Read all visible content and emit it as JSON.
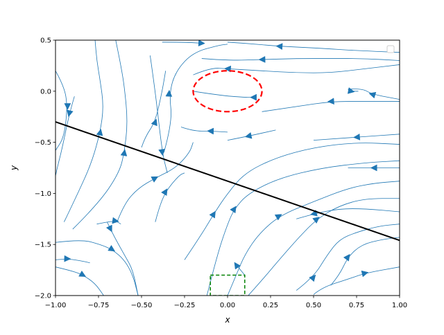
{
  "chart_data": {
    "type": "streamplot",
    "title": "",
    "xlabel": "x",
    "ylabel": "y",
    "xlim": [
      -1.0,
      1.0
    ],
    "ylim": [
      -2.0,
      0.5
    ],
    "x_ticks": [
      -1.0,
      -0.75,
      -0.5,
      -0.25,
      0.0,
      0.25,
      0.5,
      0.75,
      1.0
    ],
    "y_ticks": [
      -2.0,
      -1.5,
      -1.0,
      -0.5,
      0.0,
      0.5
    ],
    "x_tick_labels": [
      "−1.00",
      "−0.75",
      "−0.50",
      "−0.25",
      "0.00",
      "0.25",
      "0.50",
      "0.75",
      "1.00"
    ],
    "y_tick_labels": [
      "−2.0",
      "−1.5",
      "−1.0",
      "−0.5",
      "0.0",
      "0.5"
    ],
    "grid": false,
    "legend": {
      "placement": "upper-right",
      "entries": []
    },
    "colors": {
      "stream": "#1f77b4",
      "line": "#000000",
      "ellipse": "#ff0000",
      "box": "#008000"
    },
    "streamlines": [
      {
        "points": [
          [
            -1.0,
            0.2
          ],
          [
            -0.95,
            0.05
          ],
          [
            -0.93,
            -0.15
          ],
          [
            -0.95,
            -0.45
          ],
          [
            -1.0,
            -0.58
          ]
        ],
        "arrow_at": 2,
        "arrow_dir": "down"
      },
      {
        "points": [
          [
            -0.89,
            -0.05
          ],
          [
            -0.92,
            -0.22
          ],
          [
            -0.96,
            -0.55
          ],
          [
            -0.99,
            -0.75
          ],
          [
            -1.0,
            -0.83
          ]
        ],
        "arrow_at": 1,
        "arrow_dir": "down"
      },
      {
        "points": [
          [
            -0.95,
            -1.28
          ],
          [
            -0.87,
            -1.0
          ],
          [
            -0.79,
            -0.7
          ],
          [
            -0.74,
            -0.4
          ],
          [
            -0.72,
            -0.15
          ],
          [
            -0.74,
            0.1
          ],
          [
            -0.76,
            0.3
          ],
          [
            -0.77,
            0.5
          ]
        ],
        "arrow_at": 3,
        "arrow_dir": "up"
      },
      {
        "points": [
          [
            -0.9,
            -1.35
          ],
          [
            -0.75,
            -1.1
          ],
          [
            -0.63,
            -0.8
          ],
          [
            -0.6,
            -0.6
          ],
          [
            -0.58,
            -0.3
          ],
          [
            -0.6,
            0.05
          ],
          [
            -0.62,
            0.25
          ],
          [
            -0.65,
            0.5
          ]
        ],
        "arrow_at": 3,
        "arrow_dir": "up"
      },
      {
        "points": [
          [
            -0.42,
            -1.28
          ],
          [
            -0.4,
            -1.15
          ],
          [
            -0.36,
            -0.98
          ],
          [
            -0.28,
            -0.82
          ],
          [
            -0.25,
            -0.8
          ]
        ],
        "arrow_at": 2,
        "arrow_dir": "up"
      },
      {
        "points": [
          [
            -0.45,
            0.35
          ],
          [
            -0.42,
            0.0
          ],
          [
            -0.38,
            -0.6
          ],
          [
            -0.35,
            -0.8
          ]
        ],
        "arrow_at": 2,
        "arrow_dir": "down"
      },
      {
        "points": [
          [
            -0.37,
            -0.6
          ],
          [
            -0.32,
            -0.3
          ],
          [
            -0.34,
            -0.02
          ],
          [
            -0.3,
            0.2
          ],
          [
            -0.2,
            0.38
          ],
          [
            -0.05,
            0.45
          ],
          [
            0.0,
            0.46
          ]
        ],
        "arrow_at": 2,
        "arrow_dir": "up"
      },
      {
        "points": [
          [
            -0.7,
            -1.28
          ],
          [
            -0.68,
            -1.35
          ],
          [
            -0.65,
            -1.45
          ],
          [
            -0.6,
            -1.6
          ],
          [
            -0.55,
            -1.75
          ],
          [
            -0.52,
            -2.0
          ]
        ],
        "arrow_at": 1,
        "arrow_dir": "down"
      },
      {
        "points": [
          [
            -0.76,
            -1.3
          ],
          [
            -0.7,
            -1.28
          ],
          [
            -0.65,
            -1.27
          ],
          [
            -0.62,
            -1.3
          ]
        ],
        "arrow_at": 2,
        "arrow_dir": "right"
      },
      {
        "points": [
          [
            -1.0,
            -1.48
          ],
          [
            -0.85,
            -1.45
          ],
          [
            -0.74,
            -1.5
          ],
          [
            -0.67,
            -1.55
          ],
          [
            -0.6,
            -1.65
          ],
          [
            -0.55,
            -1.8
          ],
          [
            -0.52,
            -2.0
          ]
        ],
        "arrow_at": 3,
        "arrow_dir": "down"
      },
      {
        "points": [
          [
            -1.0,
            -1.65
          ],
          [
            -0.93,
            -1.64
          ],
          [
            -0.85,
            -1.66
          ],
          [
            -0.8,
            -1.68
          ]
        ],
        "arrow_at": 1,
        "arrow_dir": "right"
      },
      {
        "points": [
          [
            -1.0,
            -1.72
          ],
          [
            -0.9,
            -1.76
          ],
          [
            -0.84,
            -1.8
          ],
          [
            -0.77,
            -1.88
          ],
          [
            -0.72,
            -2.0
          ]
        ],
        "arrow_at": 2,
        "arrow_dir": "right"
      },
      {
        "points": [
          [
            -0.25,
            -1.65
          ],
          [
            -0.15,
            -1.4
          ],
          [
            -0.08,
            -1.2
          ],
          [
            0.0,
            -1.0
          ],
          [
            0.1,
            -0.8
          ],
          [
            0.28,
            -0.65
          ],
          [
            0.5,
            -0.55
          ],
          [
            0.75,
            -0.5
          ],
          [
            1.0,
            -0.52
          ]
        ],
        "arrow_at": 2,
        "arrow_dir": "up"
      },
      {
        "points": [
          [
            -0.12,
            -2.0
          ],
          [
            -0.06,
            -1.6
          ],
          [
            0.0,
            -1.3
          ],
          [
            0.04,
            -1.15
          ],
          [
            0.12,
            -1.0
          ],
          [
            0.3,
            -0.85
          ],
          [
            0.55,
            -0.75
          ],
          [
            0.8,
            -0.7
          ],
          [
            1.0,
            -0.68
          ]
        ],
        "arrow_at": 3,
        "arrow_dir": "up"
      },
      {
        "points": [
          [
            0.0,
            -2.0
          ],
          [
            0.05,
            -1.8
          ],
          [
            0.1,
            -1.6
          ],
          [
            0.18,
            -1.4
          ],
          [
            0.3,
            -1.22
          ],
          [
            0.5,
            -1.08
          ],
          [
            0.7,
            -0.95
          ],
          [
            0.85,
            -0.9
          ],
          [
            1.0,
            -0.88
          ]
        ],
        "arrow_at": 4,
        "arrow_dir": "up"
      },
      {
        "points": [
          [
            0.12,
            -2.0
          ],
          [
            0.2,
            -1.85
          ],
          [
            0.3,
            -1.65
          ],
          [
            0.42,
            -1.42
          ],
          [
            0.52,
            -1.25
          ],
          [
            0.65,
            -1.12
          ],
          [
            0.8,
            -1.05
          ],
          [
            1.0,
            -1.05
          ]
        ],
        "arrow_at": 4,
        "arrow_dir": "up"
      },
      {
        "points": [
          [
            0.1,
            -1.8
          ],
          [
            0.05,
            -1.7
          ],
          [
            0.06,
            -1.7
          ]
        ],
        "arrow_at": 1,
        "arrow_dir": "up"
      },
      {
        "points": [
          [
            0.4,
            -1.95
          ],
          [
            0.5,
            -1.82
          ],
          [
            0.58,
            -1.6
          ],
          [
            0.65,
            -1.45
          ],
          [
            0.75,
            -1.38
          ],
          [
            0.88,
            -1.32
          ],
          [
            1.0,
            -1.3
          ]
        ],
        "arrow_at": 1,
        "arrow_dir": "up"
      },
      {
        "points": [
          [
            0.6,
            -1.9
          ],
          [
            0.65,
            -1.8
          ],
          [
            0.7,
            -1.62
          ],
          [
            0.78,
            -1.5
          ],
          [
            0.9,
            -1.45
          ],
          [
            1.0,
            -1.43
          ]
        ],
        "arrow_at": 2,
        "arrow_dir": "up"
      },
      {
        "points": [
          [
            0.5,
            -1.99
          ],
          [
            0.55,
            -1.92
          ],
          [
            0.7,
            -1.84
          ],
          [
            0.8,
            -1.78
          ],
          [
            1.0,
            -1.72
          ]
        ],
        "arrow_at": 3,
        "arrow_dir": "up"
      },
      {
        "points": [
          [
            0.4,
            -1.25
          ],
          [
            0.5,
            -1.2
          ],
          [
            0.65,
            -1.15
          ],
          [
            0.8,
            -1.15
          ],
          [
            1.0,
            -1.18
          ]
        ],
        "arrow_at": 1,
        "arrow_dir": "left"
      },
      {
        "points": [
          [
            0.7,
            -0.75
          ],
          [
            0.85,
            -0.75
          ],
          [
            1.0,
            -0.75
          ]
        ],
        "arrow_at": 1,
        "arrow_dir": "left"
      },
      {
        "points": [
          [
            0.5,
            -0.48
          ],
          [
            0.75,
            -0.45
          ],
          [
            1.0,
            -0.42
          ]
        ],
        "arrow_at": 1,
        "arrow_dir": "left"
      },
      {
        "points": [
          [
            -0.27,
            -0.35
          ],
          [
            -0.2,
            -0.39
          ],
          [
            -0.1,
            -0.39
          ],
          [
            0.0,
            -0.4
          ]
        ],
        "arrow_at": 2,
        "arrow_dir": "left"
      },
      {
        "points": [
          [
            0.0,
            -0.48
          ],
          [
            0.12,
            -0.44
          ],
          [
            0.28,
            -0.38
          ]
        ],
        "arrow_at": 1,
        "arrow_dir": "left"
      },
      {
        "points": [
          [
            0.2,
            -0.2
          ],
          [
            0.4,
            -0.15
          ],
          [
            0.6,
            -0.1
          ],
          [
            0.8,
            -0.1
          ],
          [
            1.0,
            -0.1
          ]
        ],
        "arrow_at": 2,
        "arrow_dir": "left"
      },
      {
        "points": [
          [
            0.7,
            0.02
          ],
          [
            0.78,
            0.03
          ],
          [
            0.84,
            -0.03
          ],
          [
            1.0,
            -0.08
          ]
        ],
        "arrow_at": 2,
        "arrow_dir": "left"
      },
      {
        "points": [
          [
            0.7,
            0.02
          ],
          [
            0.72,
            0.0
          ],
          [
            0.76,
            0.0
          ]
        ],
        "arrow_at": 1,
        "arrow_dir": "right"
      },
      {
        "points": [
          [
            -0.2,
            0.0
          ],
          [
            -0.05,
            -0.04
          ],
          [
            0.1,
            -0.06
          ],
          [
            0.15,
            -0.06
          ]
        ],
        "arrow_at": 3,
        "arrow_dir": "left"
      },
      {
        "points": [
          [
            -0.2,
            0.16
          ],
          [
            -0.1,
            0.23
          ],
          [
            0.0,
            0.22
          ],
          [
            0.2,
            0.2
          ],
          [
            0.4,
            0.18
          ],
          [
            0.6,
            0.18
          ],
          [
            0.8,
            0.22
          ],
          [
            1.0,
            0.26
          ]
        ],
        "arrow_at": 2,
        "arrow_dir": "left"
      },
      {
        "points": [
          [
            -0.15,
            0.32
          ],
          [
            0.0,
            0.3
          ],
          [
            0.2,
            0.31
          ],
          [
            0.4,
            0.32
          ],
          [
            0.6,
            0.32
          ],
          [
            0.8,
            0.32
          ],
          [
            1.0,
            0.3
          ]
        ],
        "arrow_at": 2,
        "arrow_dir": "left"
      },
      {
        "points": [
          [
            0.0,
            0.48
          ],
          [
            0.1,
            0.47
          ],
          [
            0.3,
            0.44
          ],
          [
            0.55,
            0.42
          ],
          [
            0.72,
            0.4
          ],
          [
            1.0,
            0.38
          ]
        ],
        "arrow_at": 2,
        "arrow_dir": "left"
      },
      {
        "points": [
          [
            -0.38,
            0.48
          ],
          [
            -0.25,
            0.48
          ],
          [
            -0.15,
            0.47
          ]
        ],
        "arrow_at": 2,
        "arrow_dir": "right"
      },
      {
        "points": [
          [
            -0.5,
            -0.55
          ],
          [
            -0.48,
            -0.45
          ],
          [
            -0.42,
            -0.3
          ],
          [
            -0.38,
            0.0
          ],
          [
            -0.36,
            0.2
          ]
        ],
        "arrow_at": 2,
        "arrow_dir": "up"
      },
      {
        "points": [
          [
            -0.64,
            -1.27
          ],
          [
            -0.6,
            -1.1
          ],
          [
            -0.52,
            -0.95
          ],
          [
            -0.42,
            -0.85
          ],
          [
            -0.3,
            -0.75
          ],
          [
            -0.22,
            -0.6
          ],
          [
            -0.2,
            -0.5
          ]
        ],
        "arrow_at": 3,
        "arrow_dir": "up"
      }
    ],
    "overlays": [
      {
        "kind": "line",
        "points": [
          [
            -1.0,
            -0.3
          ],
          [
            1.0,
            -1.46
          ]
        ],
        "style": "solid"
      },
      {
        "kind": "ellipse",
        "center": [
          0.0,
          0.0
        ],
        "rx": 0.2,
        "ry": 0.2,
        "style": "dashed"
      },
      {
        "kind": "rect",
        "x": [
          -0.1,
          0.1
        ],
        "y": [
          -2.0,
          -1.8
        ],
        "style": "dashed"
      }
    ]
  }
}
